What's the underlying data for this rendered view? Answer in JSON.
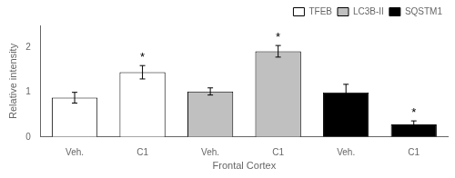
{
  "chart_data": {
    "type": "bar",
    "categories": [
      "Veh.",
      "C1",
      "Veh.",
      "C1",
      "Veh.",
      "C1"
    ],
    "series": [
      {
        "name": "TFEB",
        "color": "#ffffff",
        "values": [
          0.88,
          1.45,
          null,
          null,
          null,
          null
        ],
        "errors": [
          0.12,
          0.15,
          null,
          null,
          null,
          null
        ],
        "significance": [
          null,
          "*",
          null,
          null,
          null,
          null
        ]
      },
      {
        "name": "LC3B-II",
        "color": "#c0c0c0",
        "values": [
          null,
          null,
          1.02,
          1.92,
          null,
          null
        ],
        "errors": [
          null,
          null,
          0.08,
          0.13,
          null,
          null
        ],
        "significance": [
          null,
          null,
          null,
          "*",
          null,
          null
        ]
      },
      {
        "name": "SQSTM1",
        "color": "#000000",
        "values": [
          null,
          null,
          null,
          null,
          1.0,
          0.28
        ],
        "errors": [
          null,
          null,
          null,
          null,
          0.18,
          0.08
        ],
        "significance": [
          null,
          null,
          null,
          null,
          null,
          "*"
        ]
      }
    ],
    "xlabel": "Frontal Cortex",
    "ylabel": "Relative intensity",
    "ylim": [
      0,
      2.5
    ],
    "yticks": [
      0,
      1,
      2
    ],
    "legend": "upper right",
    "grid": false
  }
}
